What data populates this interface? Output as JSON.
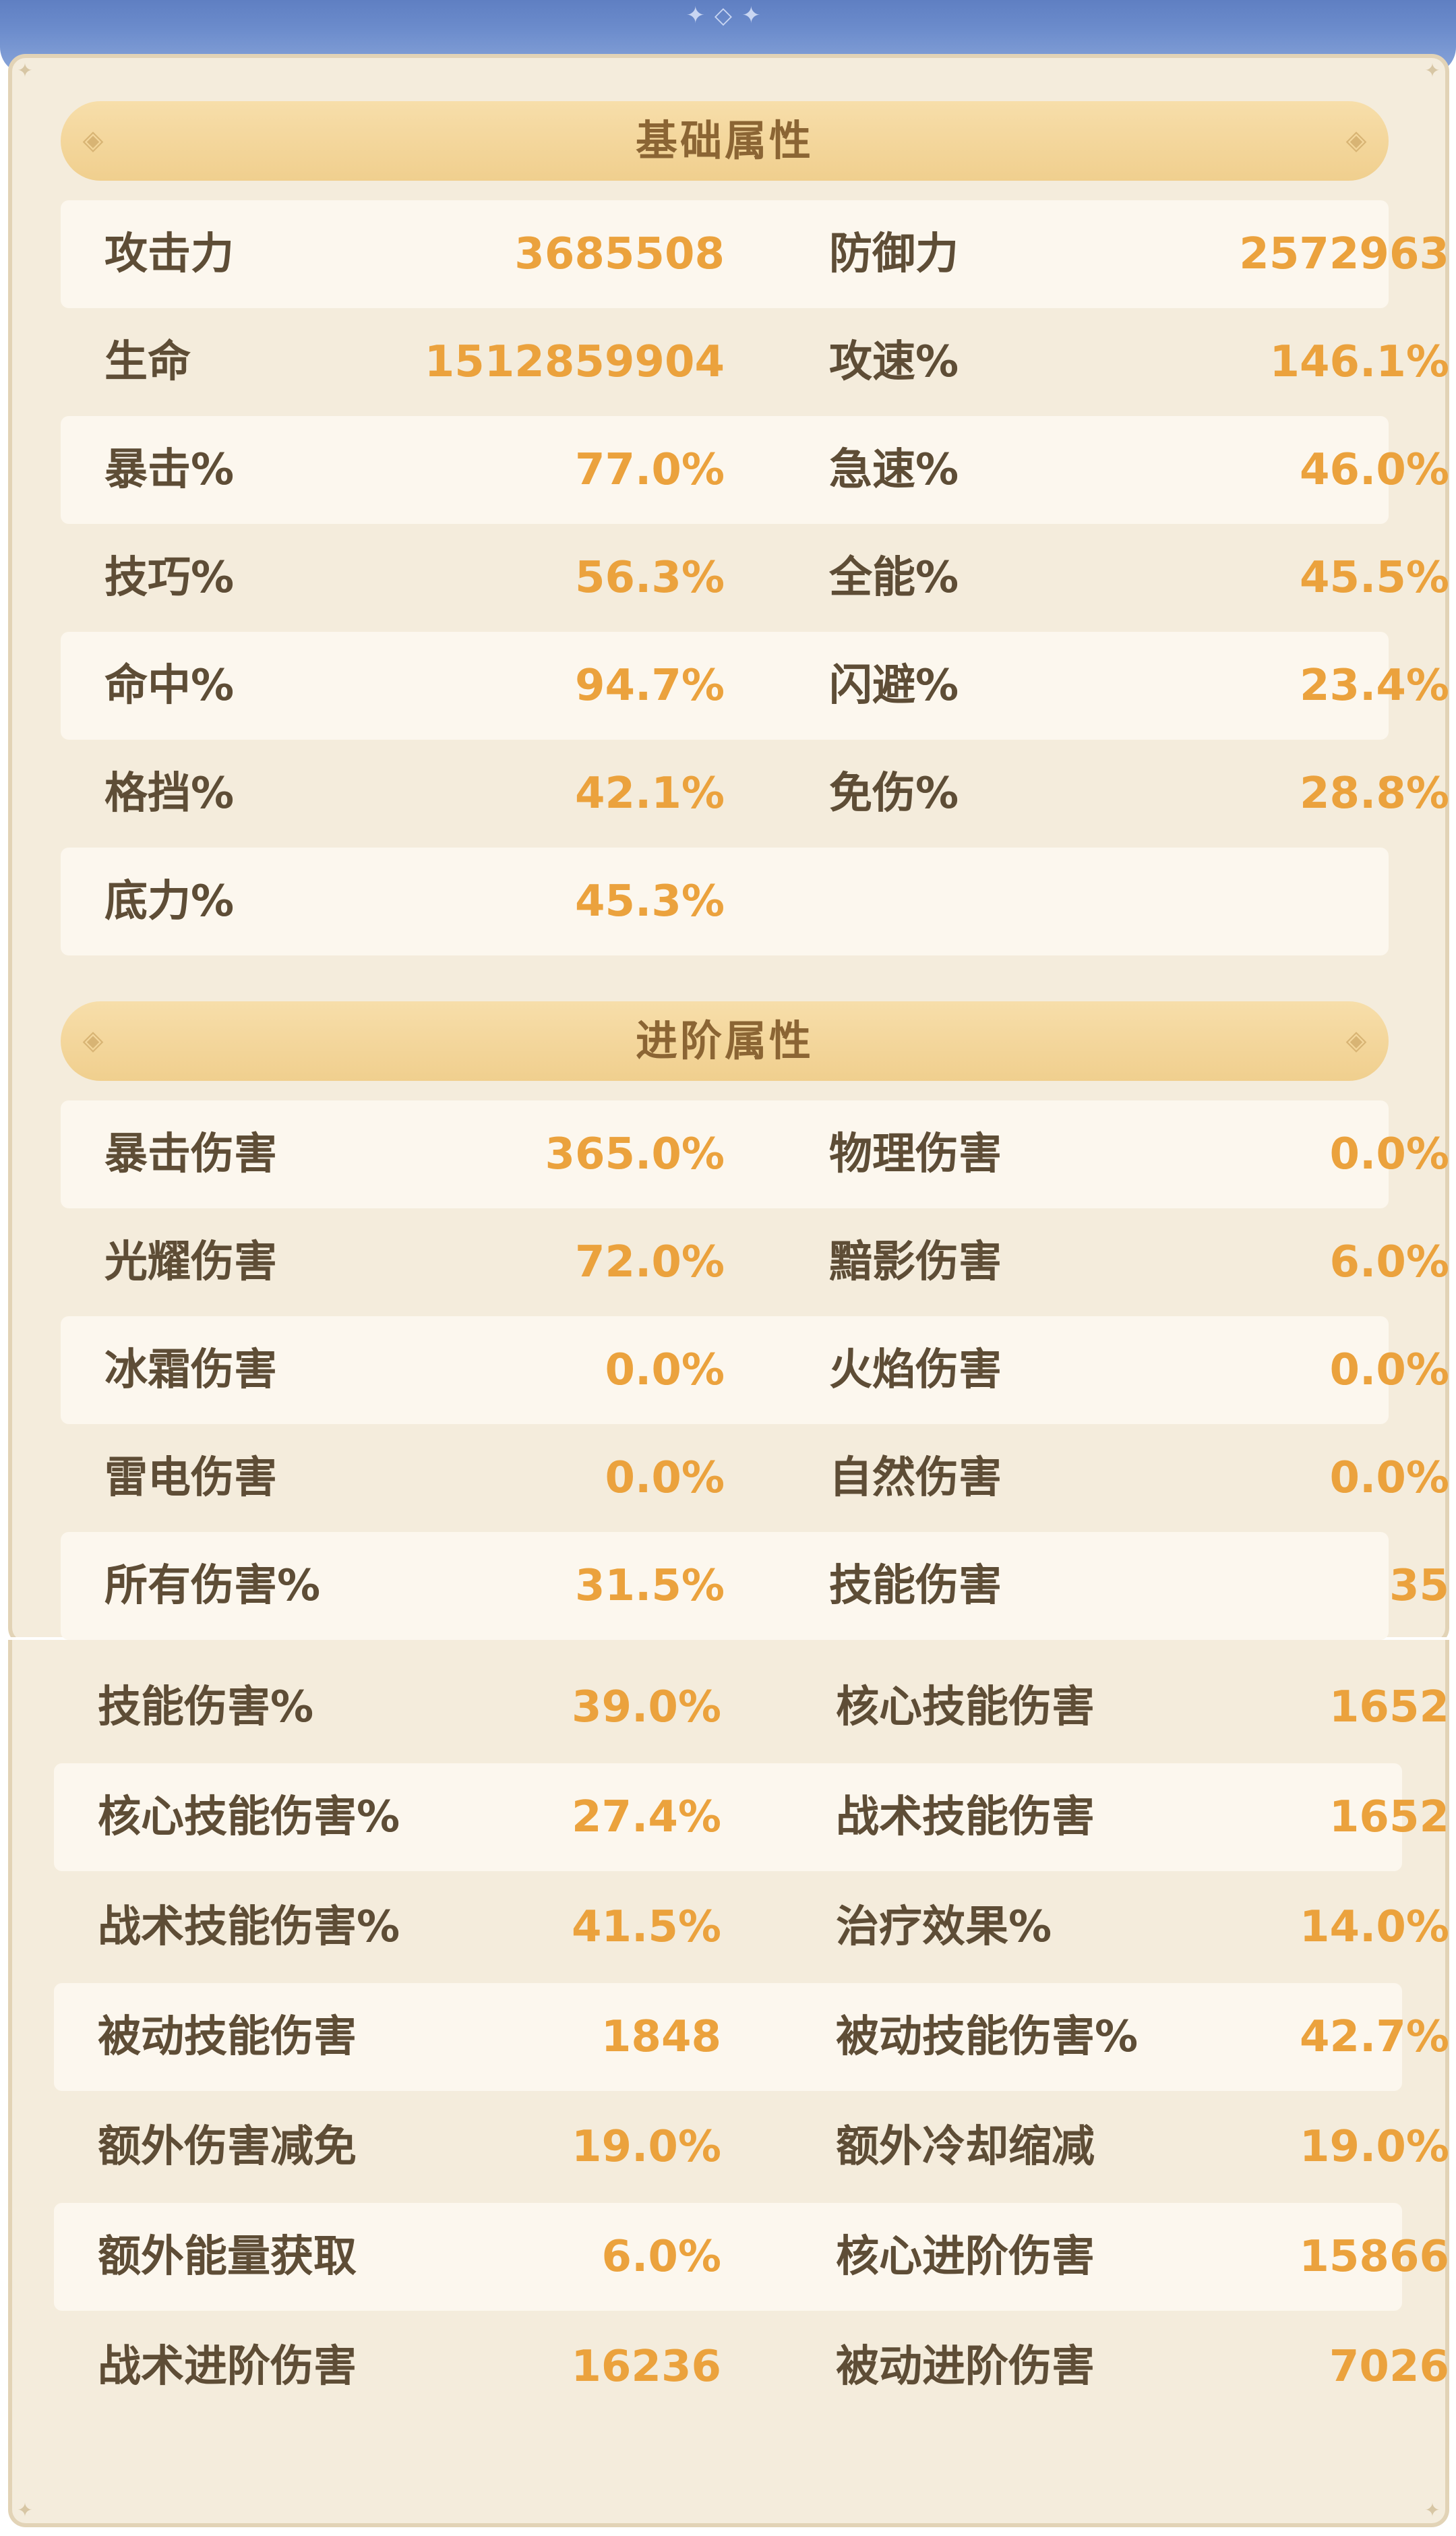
{
  "basic": {
    "title": "基础属性",
    "rows": [
      [
        {
          "label": "攻击力",
          "value": "3685508"
        },
        {
          "label": "防御力",
          "value": "2572963"
        }
      ],
      [
        {
          "label": "生命",
          "value": "1512859904"
        },
        {
          "label": "攻速%",
          "value": "146.1%"
        }
      ],
      [
        {
          "label": "暴击%",
          "value": "77.0%"
        },
        {
          "label": "急速%",
          "value": "46.0%"
        }
      ],
      [
        {
          "label": "技巧%",
          "value": "56.3%"
        },
        {
          "label": "全能%",
          "value": "45.5%"
        }
      ],
      [
        {
          "label": "命中%",
          "value": "94.7%"
        },
        {
          "label": "闪避%",
          "value": "23.4%"
        }
      ],
      [
        {
          "label": "格挡%",
          "value": "42.1%"
        },
        {
          "label": "免伤%",
          "value": "28.8%"
        }
      ],
      [
        {
          "label": "底力%",
          "value": "45.3%"
        }
      ]
    ]
  },
  "advanced": {
    "title": "进阶属性",
    "rows": [
      [
        {
          "label": "暴击伤害",
          "value": "365.0%"
        },
        {
          "label": "物理伤害",
          "value": "0.0%"
        }
      ],
      [
        {
          "label": "光耀伤害",
          "value": "72.0%"
        },
        {
          "label": "黯影伤害",
          "value": "6.0%"
        }
      ],
      [
        {
          "label": "冰霜伤害",
          "value": "0.0%"
        },
        {
          "label": "火焰伤害",
          "value": "0.0%"
        }
      ],
      [
        {
          "label": "雷电伤害",
          "value": "0.0%"
        },
        {
          "label": "自然伤害",
          "value": "0.0%"
        }
      ],
      [
        {
          "label": "所有伤害%",
          "value": "31.5%"
        },
        {
          "label": "技能伤害",
          "value": "35"
        }
      ]
    ]
  },
  "continued": {
    "rows": [
      [
        {
          "label": "技能伤害%",
          "value": "39.0%"
        },
        {
          "label": "核心技能伤害",
          "value": "1652"
        }
      ],
      [
        {
          "label": "核心技能伤害%",
          "value": "27.4%"
        },
        {
          "label": "战术技能伤害",
          "value": "1652"
        }
      ],
      [
        {
          "label": "战术技能伤害%",
          "value": "41.5%"
        },
        {
          "label": "治疗效果%",
          "value": "14.0%"
        }
      ],
      [
        {
          "label": "被动技能伤害",
          "value": "1848"
        },
        {
          "label": "被动技能伤害%",
          "value": "42.7%"
        }
      ],
      [
        {
          "label": "额外伤害减免",
          "value": "19.0%"
        },
        {
          "label": "额外冷却缩减",
          "value": "19.0%"
        }
      ],
      [
        {
          "label": "额外能量获取",
          "value": "6.0%"
        },
        {
          "label": "核心进阶伤害",
          "value": "15866"
        }
      ],
      [
        {
          "label": "战术进阶伤害",
          "value": "16236"
        },
        {
          "label": "被动进阶伤害",
          "value": "7026"
        }
      ]
    ]
  },
  "colors": {
    "label": "#5e4d36",
    "value": "#eba23d",
    "header_text": "#8b6534",
    "panel": "#f4ecdc",
    "stripe": "#fcf7ee"
  },
  "icons": [
    "diamond-ornament-icon",
    "corner-ornament-icon"
  ]
}
